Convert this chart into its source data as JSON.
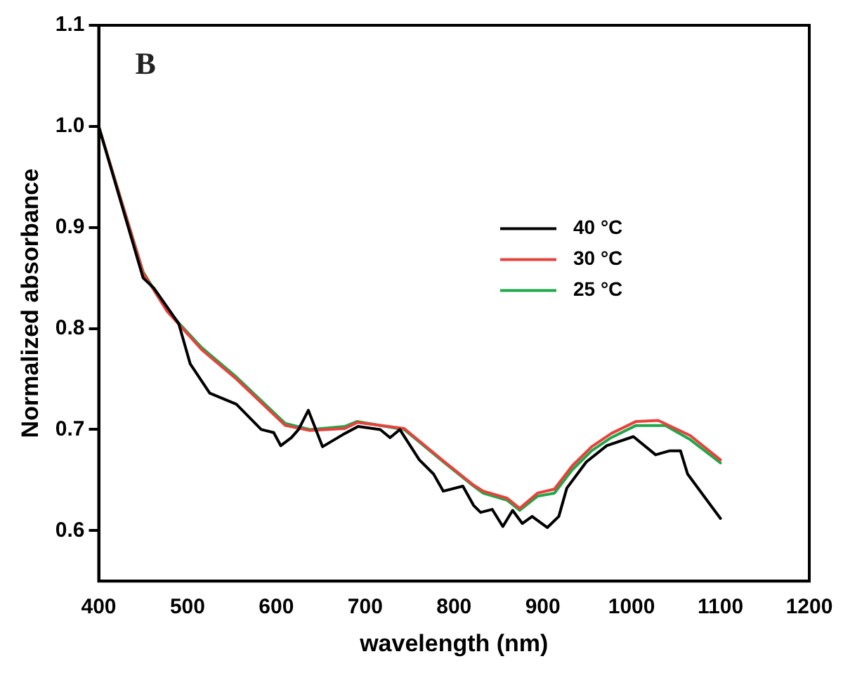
{
  "chart_data": {
    "type": "line",
    "xlabel": "wavelength (nm)",
    "ylabel": "Normalized absorbance",
    "annotations": [
      "B"
    ],
    "xlim": [
      400,
      1200
    ],
    "xticks": [
      400,
      500,
      600,
      700,
      800,
      900,
      1000,
      1100,
      1200
    ],
    "ylim": [
      0.55,
      1.1
    ],
    "yticks": [
      0.6,
      0.7,
      0.8,
      0.9,
      {
        "value": 1,
        "label": "1.0"
      },
      1.1
    ],
    "grid": false,
    "legend": "right",
    "marker": "none",
    "line_style": "solid",
    "series": [
      {
        "name": "40 °C",
        "color": "#000000",
        "x": [
          400,
          450,
          462,
          490,
          503,
          525,
          555,
          583,
          597,
          605,
          617,
          625,
          636,
          652,
          675,
          692,
          717,
          728,
          739,
          761,
          777,
          788,
          810,
          822,
          830,
          843,
          855,
          866,
          877,
          888,
          905,
          918,
          927,
          949,
          972,
          1002,
          1027,
          1043,
          1055,
          1063,
          1100
        ],
        "values": [
          1.0,
          0.85,
          0.84,
          0.805,
          0.765,
          0.736,
          0.725,
          0.7,
          0.697,
          0.684,
          0.692,
          0.7,
          0.719,
          0.683,
          0.695,
          0.703,
          0.7,
          0.692,
          0.7,
          0.67,
          0.656,
          0.639,
          0.644,
          0.625,
          0.618,
          0.621,
          0.604,
          0.62,
          0.607,
          0.614,
          0.603,
          0.614,
          0.642,
          0.668,
          0.684,
          0.693,
          0.675,
          0.679,
          0.679,
          0.656,
          0.612
        ]
      },
      {
        "name": "30 °C",
        "color": "#e8413c",
        "x": [
          400,
          450,
          477,
          516,
          555,
          610,
          638,
          677,
          691,
          744,
          788,
          822,
          833,
          860,
          874,
          894,
          913,
          933,
          955,
          977,
          1005,
          1030,
          1066,
          1100
        ],
        "values": [
          1.0,
          0.855,
          0.817,
          0.779,
          0.75,
          0.704,
          0.699,
          0.701,
          0.707,
          0.701,
          0.669,
          0.645,
          0.639,
          0.632,
          0.622,
          0.637,
          0.641,
          0.664,
          0.683,
          0.696,
          0.708,
          0.709,
          0.694,
          0.67
        ]
      },
      {
        "name": "25 °C",
        "color": "#1ea84a",
        "x": [
          400,
          450,
          477,
          516,
          555,
          610,
          638,
          677,
          691,
          744,
          788,
          822,
          833,
          860,
          874,
          894,
          913,
          933,
          955,
          977,
          1005,
          1038,
          1066,
          1100
        ],
        "values": [
          1.0,
          0.856,
          0.818,
          0.781,
          0.752,
          0.706,
          0.7,
          0.703,
          0.708,
          0.7,
          0.668,
          0.644,
          0.637,
          0.63,
          0.62,
          0.634,
          0.637,
          0.66,
          0.679,
          0.692,
          0.704,
          0.704,
          0.69,
          0.667
        ]
      }
    ]
  }
}
